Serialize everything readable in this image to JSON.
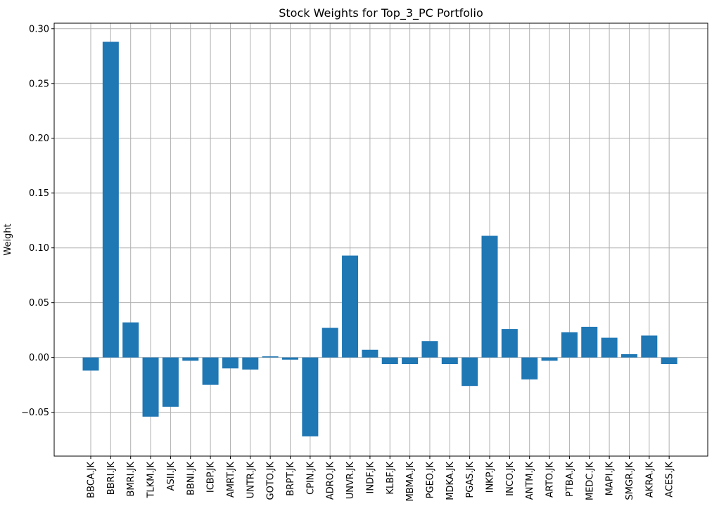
{
  "chart_data": {
    "type": "bar",
    "title": "Stock Weights for Top_3_PC Portfolio",
    "xlabel": "",
    "ylabel": "Weight",
    "ylim": [
      -0.09,
      0.305
    ],
    "yticks": [
      -0.05,
      0.0,
      0.05,
      0.1,
      0.15,
      0.2,
      0.25,
      0.3
    ],
    "ytick_labels": [
      "−0.05",
      "0.00",
      "0.05",
      "0.10",
      "0.15",
      "0.20",
      "0.25",
      "0.30"
    ],
    "grid": true,
    "bar_color": "#1f77b4",
    "categories": [
      "BBCA.JK",
      "BBRI.JK",
      "BMRI.JK",
      "TLKM.JK",
      "ASII.JK",
      "BBNI.JK",
      "ICBP.JK",
      "AMRT.JK",
      "UNTR.JK",
      "GOTO.JK",
      "BRPT.JK",
      "CPIN.JK",
      "ADRO.JK",
      "UNVR.JK",
      "INDF.JK",
      "KLBF.JK",
      "MBMA.JK",
      "PGEO.JK",
      "MDKA.JK",
      "PGAS.JK",
      "INKP.JK",
      "INCO.JK",
      "ANTM.JK",
      "ARTO.JK",
      "PTBA.JK",
      "MEDC.JK",
      "MAPI.JK",
      "SMGR.JK",
      "AKRA.JK",
      "ACES.JK"
    ],
    "values": [
      -0.012,
      0.288,
      0.032,
      -0.054,
      -0.045,
      -0.003,
      -0.025,
      -0.01,
      -0.011,
      0.001,
      -0.002,
      -0.072,
      0.027,
      0.093,
      0.007,
      -0.006,
      -0.006,
      0.015,
      -0.006,
      -0.026,
      0.111,
      0.026,
      -0.02,
      -0.003,
      0.023,
      0.028,
      0.018,
      0.003,
      0.02,
      -0.006
    ]
  }
}
